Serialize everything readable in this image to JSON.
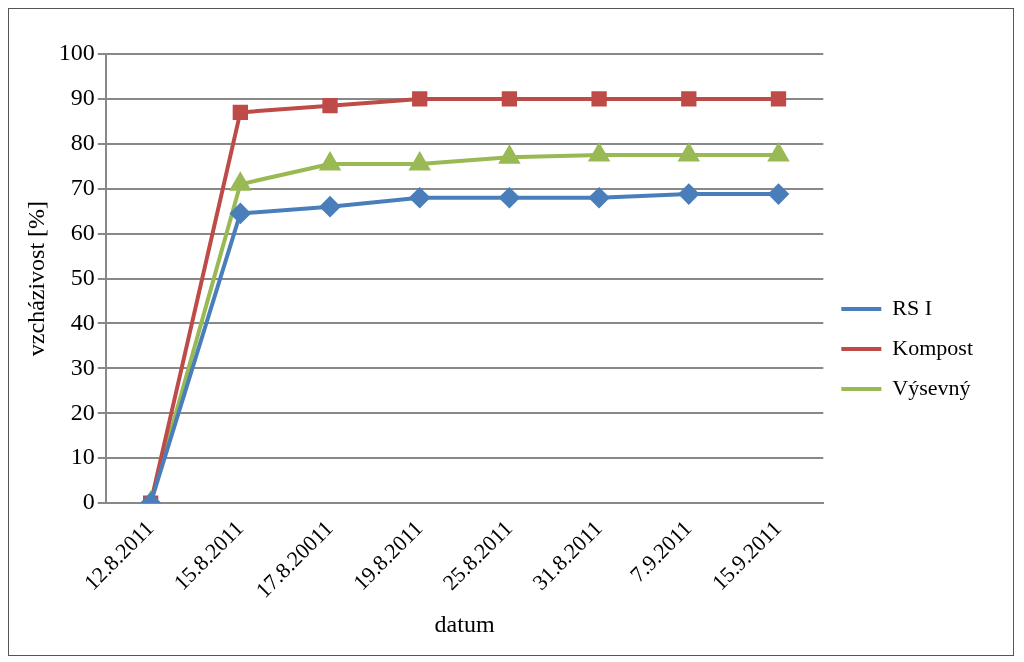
{
  "chart_data": {
    "type": "line",
    "xlabel": "datum",
    "ylabel": "vzcházivost [%]",
    "categories": [
      "12.8.2011",
      "15.8.2011",
      "17.8.20011",
      "19.8.2011",
      "25.8.2011",
      "31.8.2011",
      "7.9.2011",
      "15.9.2011"
    ],
    "series": [
      {
        "name": "RS I",
        "color": "#4a7ebb",
        "marker": "diamond",
        "values": [
          0,
          64.5,
          66,
          68,
          68,
          68,
          68.8,
          68.8
        ]
      },
      {
        "name": "Kompost",
        "color": "#be4b48",
        "marker": "square",
        "values": [
          0,
          87,
          88.5,
          90,
          90,
          90,
          90,
          90
        ]
      },
      {
        "name": "Výsevný",
        "color": "#98b954",
        "marker": "triangle",
        "values": [
          0,
          71,
          75.5,
          75.5,
          77,
          77.5,
          77.5,
          77.5
        ]
      }
    ],
    "ylim": [
      0,
      100
    ],
    "yticks": [
      0,
      10,
      20,
      30,
      40,
      50,
      60,
      70,
      80,
      90,
      100
    ],
    "grid": "y",
    "legend": "right"
  }
}
